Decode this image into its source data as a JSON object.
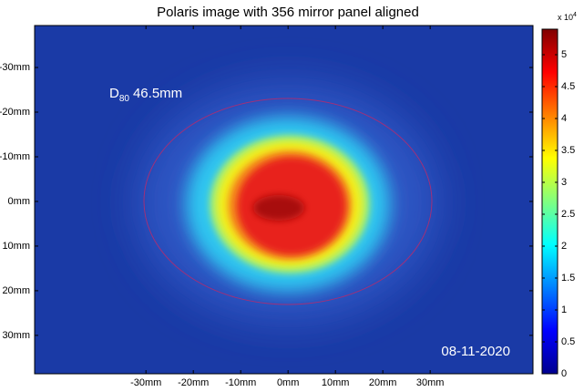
{
  "chart_data": {
    "type": "heatmap",
    "title": "Polaris image with 356 mirror panel aligned",
    "colormap": "jet",
    "xlim": [
      -53.5,
      51.7
    ],
    "xticks": [
      {
        "value": -30,
        "label": "-30mm"
      },
      {
        "value": -20,
        "label": "-20mm"
      },
      {
        "value": -10,
        "label": "-10mm"
      },
      {
        "value": 0,
        "label": "0mm"
      },
      {
        "value": 10,
        "label": "10mm"
      },
      {
        "value": 20,
        "label": "20mm"
      },
      {
        "value": 30,
        "label": "30mm"
      }
    ],
    "ylim": [
      -39.4,
      38.6
    ],
    "yticks": [
      {
        "value": -30,
        "label": "-30mm"
      },
      {
        "value": -20,
        "label": "-20mm"
      },
      {
        "value": -10,
        "label": "-10mm"
      },
      {
        "value": 0,
        "label": "0mm"
      },
      {
        "value": 10,
        "label": "10mm"
      },
      {
        "value": 20,
        "label": "20mm"
      },
      {
        "value": 30,
        "label": "30mm"
      }
    ],
    "clim": [
      0,
      5.4
    ],
    "cticks": [
      0,
      0.5,
      1,
      1.5,
      2,
      2.5,
      3,
      3.5,
      4,
      4.5,
      5
    ],
    "colorbar_multiplier": "x 10",
    "colorbar_exponent": "4",
    "annotations": {
      "d_symbol": "D",
      "d_subscript": "80",
      "d_value": "46.5mm",
      "date": "08-11-2020"
    }
  }
}
